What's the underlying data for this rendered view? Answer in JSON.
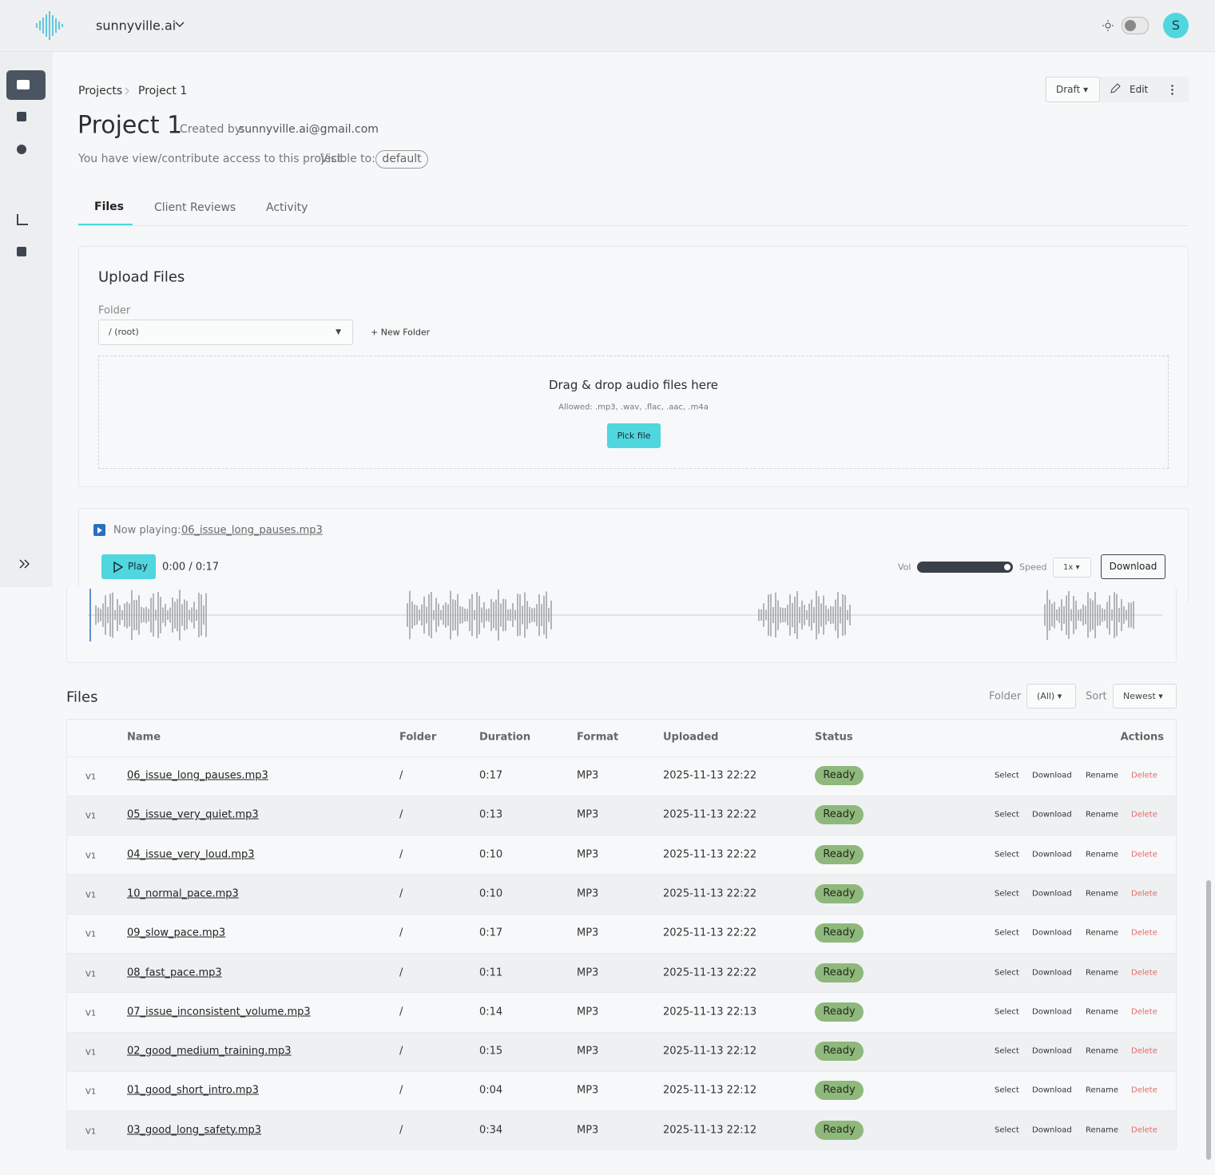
{
  "header": {
    "brand": "sunnyville.ai",
    "avatar": "S"
  },
  "breadcrumb": [
    "Projects",
    "Project 1"
  ],
  "project": {
    "title": "Project 1",
    "created_by_label": "Created by:",
    "created_by": "sunnyville.ai@gmail.com",
    "access": "You have view/contribute access to this project.",
    "visible_label": "Visible to:",
    "visible": "default",
    "status": "Draft",
    "edit": "Edit"
  },
  "tabs": [
    "Files",
    "Client Reviews",
    "Activity"
  ],
  "upload": {
    "title": "Upload Files",
    "folder_label": "Folder",
    "folder": "/ (root)",
    "new_folder": "+ New Folder",
    "drop": "Drag & drop audio files here",
    "allowed": "Allowed: .mp3, .wav, .flac, .aac, .m4a",
    "pick": "Pick file"
  },
  "player": {
    "now_playing": "Now playing:",
    "file": "06_issue_long_pauses.mp3",
    "play": "Play",
    "time": "0:00 / 0:17",
    "vol": "Vol",
    "speed": "Speed",
    "speed_value": "1x",
    "download": "Download"
  },
  "files": {
    "title": "Files",
    "folder_label": "Folder",
    "folder": "(All)",
    "sort_label": "Sort",
    "sort": "Newest",
    "columns": [
      "Name",
      "Folder",
      "Duration",
      "Format",
      "Uploaded",
      "Status",
      "Actions"
    ],
    "actions": [
      "Select",
      "Download",
      "Rename",
      "Delete"
    ],
    "rows": [
      [
        "V1",
        "06_issue_long_pauses.mp3",
        "/",
        "0:17",
        "MP3",
        "2025-11-13 22:22",
        "Ready"
      ],
      [
        "V1",
        "05_issue_very_quiet.mp3",
        "/",
        "0:13",
        "MP3",
        "2025-11-13 22:22",
        "Ready"
      ],
      [
        "V1",
        "04_issue_very_loud.mp3",
        "/",
        "0:10",
        "MP3",
        "2025-11-13 22:22",
        "Ready"
      ],
      [
        "V1",
        "10_normal_pace.mp3",
        "/",
        "0:10",
        "MP3",
        "2025-11-13 22:22",
        "Ready"
      ],
      [
        "V1",
        "09_slow_pace.mp3",
        "/",
        "0:17",
        "MP3",
        "2025-11-13 22:22",
        "Ready"
      ],
      [
        "V1",
        "08_fast_pace.mp3",
        "/",
        "0:11",
        "MP3",
        "2025-11-13 22:22",
        "Ready"
      ],
      [
        "V1",
        "07_issue_inconsistent_volume.mp3",
        "/",
        "0:14",
        "MP3",
        "2025-11-13 22:13",
        "Ready"
      ],
      [
        "V1",
        "02_good_medium_training.mp3",
        "/",
        "0:15",
        "MP3",
        "2025-11-13 22:12",
        "Ready"
      ],
      [
        "V1",
        "01_good_short_intro.mp3",
        "/",
        "0:04",
        "MP3",
        "2025-11-13 22:12",
        "Ready"
      ],
      [
        "V1",
        "03_good_long_safety.mp3",
        "/",
        "0:34",
        "MP3",
        "2025-11-13 22:12",
        "Ready"
      ]
    ]
  }
}
